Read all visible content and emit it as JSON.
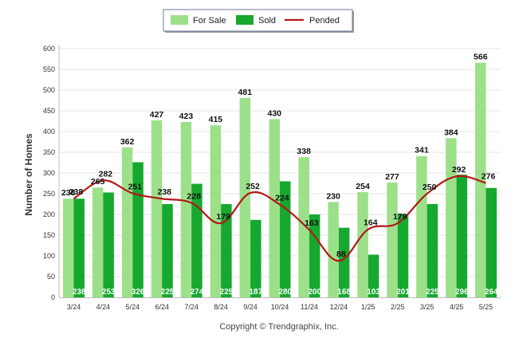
{
  "chart_data": {
    "type": "bar",
    "categories": [
      "3/24",
      "4/24",
      "5/24",
      "6/24",
      "7/24",
      "8/24",
      "9/24",
      "10/24",
      "11/24",
      "12/24",
      "1/25",
      "2/25",
      "3/25",
      "4/25",
      "5/25"
    ],
    "series": [
      {
        "name": "For Sale",
        "type": "bar",
        "color": "#9de08a",
        "values": [
          238,
          265,
          362,
          427,
          423,
          415,
          481,
          430,
          338,
          230,
          254,
          277,
          341,
          384,
          566
        ]
      },
      {
        "name": "Sold",
        "type": "bar",
        "color": "#17a82f",
        "values": [
          238,
          253,
          326,
          225,
          274,
          225,
          187,
          280,
          200,
          168,
          103,
          201,
          225,
          296,
          264
        ]
      },
      {
        "name": "Pended",
        "type": "line",
        "color": "#b41818",
        "values": [
          238,
          282,
          251,
          238,
          228,
          179,
          252,
          224,
          163,
          88,
          164,
          179,
          250,
          292,
          276
        ]
      }
    ],
    "ylabel": "Number of Homes",
    "xlabel": "",
    "ylim": [
      0,
      600
    ],
    "yticks": [
      0,
      50,
      100,
      150,
      200,
      250,
      300,
      350,
      400,
      450,
      500,
      550,
      600
    ],
    "grid": true,
    "legend": "top-center"
  },
  "footer": "Copyright © Trendgraphix, Inc."
}
